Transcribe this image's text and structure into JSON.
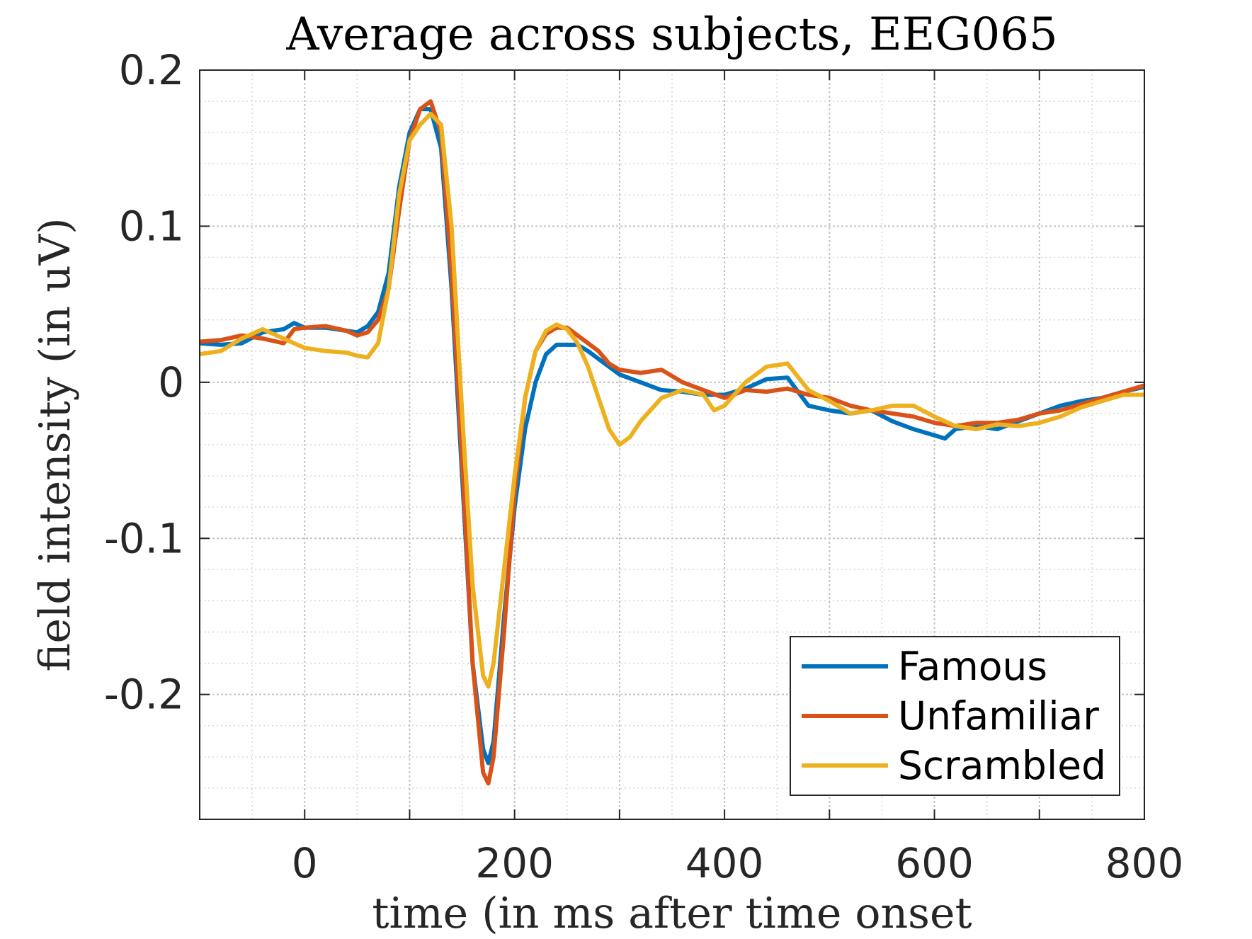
{
  "chart_data": {
    "type": "line",
    "title": "Average across subjects, EEG065",
    "xlabel": "time (in ms after time onset",
    "ylabel": "field intensity (in uV)",
    "xlim": [
      -100,
      800
    ],
    "ylim": [
      -0.28,
      0.2
    ],
    "x_ticks": [
      0,
      200,
      400,
      600,
      800
    ],
    "x_tick_labels": [
      "0",
      "200",
      "400",
      "600",
      "800"
    ],
    "y_ticks": [
      0.2,
      0.1,
      0,
      -0.1,
      -0.2
    ],
    "y_tick_labels": [
      "0.2",
      "0.1",
      "0",
      "-0.1",
      "-0.2"
    ],
    "grid": true,
    "minor_grid": true,
    "legend_position": "bottom-right",
    "series": [
      {
        "name": "Famous",
        "color": "#0072BD",
        "x": [
          -100,
          -80,
          -60,
          -40,
          -20,
          -10,
          0,
          20,
          40,
          50,
          60,
          70,
          80,
          90,
          100,
          110,
          120,
          130,
          140,
          150,
          160,
          170,
          175,
          180,
          190,
          200,
          210,
          220,
          230,
          240,
          250,
          260,
          270,
          280,
          290,
          300,
          320,
          340,
          360,
          380,
          400,
          420,
          440,
          460,
          480,
          500,
          520,
          540,
          560,
          580,
          600,
          610,
          620,
          640,
          660,
          680,
          700,
          720,
          740,
          760,
          780,
          800
        ],
        "y": [
          0.025,
          0.024,
          0.025,
          0.032,
          0.034,
          0.038,
          0.035,
          0.035,
          0.033,
          0.032,
          0.036,
          0.045,
          0.07,
          0.125,
          0.16,
          0.175,
          0.175,
          0.15,
          0.06,
          -0.06,
          -0.18,
          -0.235,
          -0.244,
          -0.23,
          -0.15,
          -0.08,
          -0.03,
          0.0,
          0.018,
          0.024,
          0.024,
          0.024,
          0.02,
          0.015,
          0.01,
          0.005,
          0.0,
          -0.005,
          -0.006,
          -0.008,
          -0.008,
          -0.004,
          0.002,
          0.003,
          -0.015,
          -0.018,
          -0.02,
          -0.018,
          -0.025,
          -0.03,
          -0.034,
          -0.036,
          -0.03,
          -0.028,
          -0.03,
          -0.025,
          -0.02,
          -0.015,
          -0.012,
          -0.01,
          -0.006,
          -0.003
        ]
      },
      {
        "name": "Unfamiliar",
        "color": "#D95319",
        "x": [
          -100,
          -80,
          -60,
          -40,
          -20,
          -10,
          0,
          20,
          40,
          50,
          60,
          70,
          80,
          90,
          100,
          110,
          120,
          130,
          140,
          150,
          160,
          170,
          175,
          180,
          190,
          200,
          210,
          220,
          230,
          240,
          250,
          260,
          270,
          280,
          290,
          300,
          320,
          340,
          360,
          380,
          400,
          420,
          440,
          460,
          480,
          500,
          520,
          540,
          560,
          580,
          600,
          610,
          620,
          640,
          660,
          680,
          700,
          720,
          740,
          760,
          780,
          800
        ],
        "y": [
          0.026,
          0.027,
          0.03,
          0.028,
          0.025,
          0.034,
          0.035,
          0.036,
          0.033,
          0.03,
          0.032,
          0.04,
          0.06,
          0.11,
          0.155,
          0.175,
          0.18,
          0.16,
          0.07,
          -0.05,
          -0.18,
          -0.25,
          -0.257,
          -0.24,
          -0.16,
          -0.07,
          -0.01,
          0.02,
          0.031,
          0.035,
          0.035,
          0.03,
          0.025,
          0.02,
          0.012,
          0.008,
          0.006,
          0.008,
          0.0,
          -0.005,
          -0.01,
          -0.005,
          -0.006,
          -0.004,
          -0.008,
          -0.01,
          -0.015,
          -0.018,
          -0.02,
          -0.022,
          -0.026,
          -0.027,
          -0.028,
          -0.026,
          -0.026,
          -0.024,
          -0.02,
          -0.018,
          -0.014,
          -0.01,
          -0.006,
          -0.002
        ]
      },
      {
        "name": "Scrambled",
        "color": "#EDB120",
        "x": [
          -100,
          -80,
          -60,
          -40,
          -20,
          -10,
          0,
          20,
          40,
          50,
          60,
          70,
          80,
          90,
          100,
          110,
          120,
          130,
          140,
          150,
          160,
          170,
          175,
          180,
          190,
          200,
          210,
          220,
          230,
          240,
          250,
          260,
          270,
          280,
          290,
          300,
          310,
          320,
          340,
          360,
          380,
          390,
          400,
          420,
          440,
          460,
          480,
          500,
          520,
          540,
          560,
          580,
          600,
          620,
          640,
          660,
          680,
          700,
          720,
          740,
          760,
          780,
          800
        ],
        "y": [
          0.018,
          0.02,
          0.028,
          0.034,
          0.028,
          0.025,
          0.022,
          0.02,
          0.019,
          0.017,
          0.016,
          0.025,
          0.06,
          0.12,
          0.155,
          0.165,
          0.172,
          0.165,
          0.1,
          -0.02,
          -0.13,
          -0.188,
          -0.195,
          -0.18,
          -0.12,
          -0.06,
          -0.01,
          0.02,
          0.033,
          0.037,
          0.034,
          0.025,
          0.01,
          -0.01,
          -0.03,
          -0.04,
          -0.035,
          -0.025,
          -0.01,
          -0.005,
          -0.008,
          -0.018,
          -0.015,
          0.0,
          0.01,
          0.012,
          -0.005,
          -0.012,
          -0.02,
          -0.018,
          -0.015,
          -0.015,
          -0.022,
          -0.028,
          -0.03,
          -0.027,
          -0.028,
          -0.026,
          -0.022,
          -0.016,
          -0.012,
          -0.008,
          -0.008
        ]
      }
    ]
  }
}
